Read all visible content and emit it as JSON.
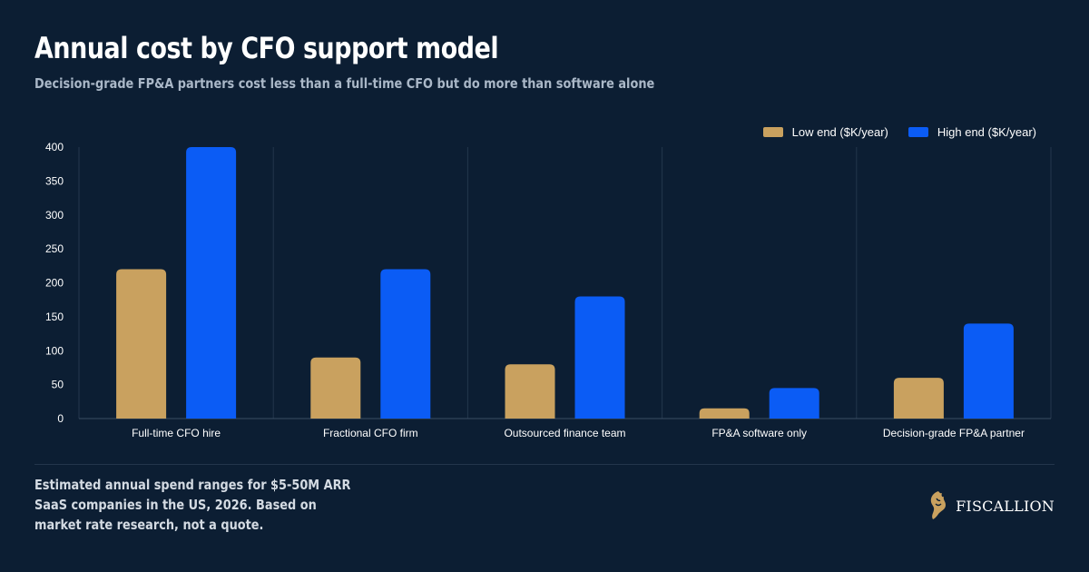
{
  "header": {
    "title": "Annual cost by CFO support model",
    "subtitle": "Decision-grade FP&A partners cost less than a full-time CFO but do more than software alone"
  },
  "colors": {
    "background": "#0c1e33",
    "low": "#c9a15f",
    "high": "#0b5cf5",
    "grid": "#23364c"
  },
  "chart_data": {
    "type": "bar",
    "categories": [
      "Full-time CFO hire",
      "Fractional CFO firm",
      "Outsourced finance team",
      "FP&A software only",
      "Decision-grade FP&A partner"
    ],
    "series": [
      {
        "name": "Low end ($K/year)",
        "values": [
          220,
          90,
          80,
          15,
          60
        ]
      },
      {
        "name": "High end ($K/year)",
        "values": [
          400,
          220,
          180,
          45,
          140
        ]
      }
    ],
    "xlabel": "",
    "ylabel": "",
    "ylim": [
      0,
      400
    ],
    "yticks": [
      0,
      50,
      100,
      150,
      200,
      250,
      300,
      350,
      400
    ],
    "grid": "vertical category separators",
    "legend": "top-right"
  },
  "footer": {
    "note": "Estimated annual spend ranges for $5-50M ARR SaaS companies in the US, 2026. Based on market rate research, not a quote.",
    "brand": "FISCALLION",
    "logo_icon": "lion-head-icon"
  }
}
